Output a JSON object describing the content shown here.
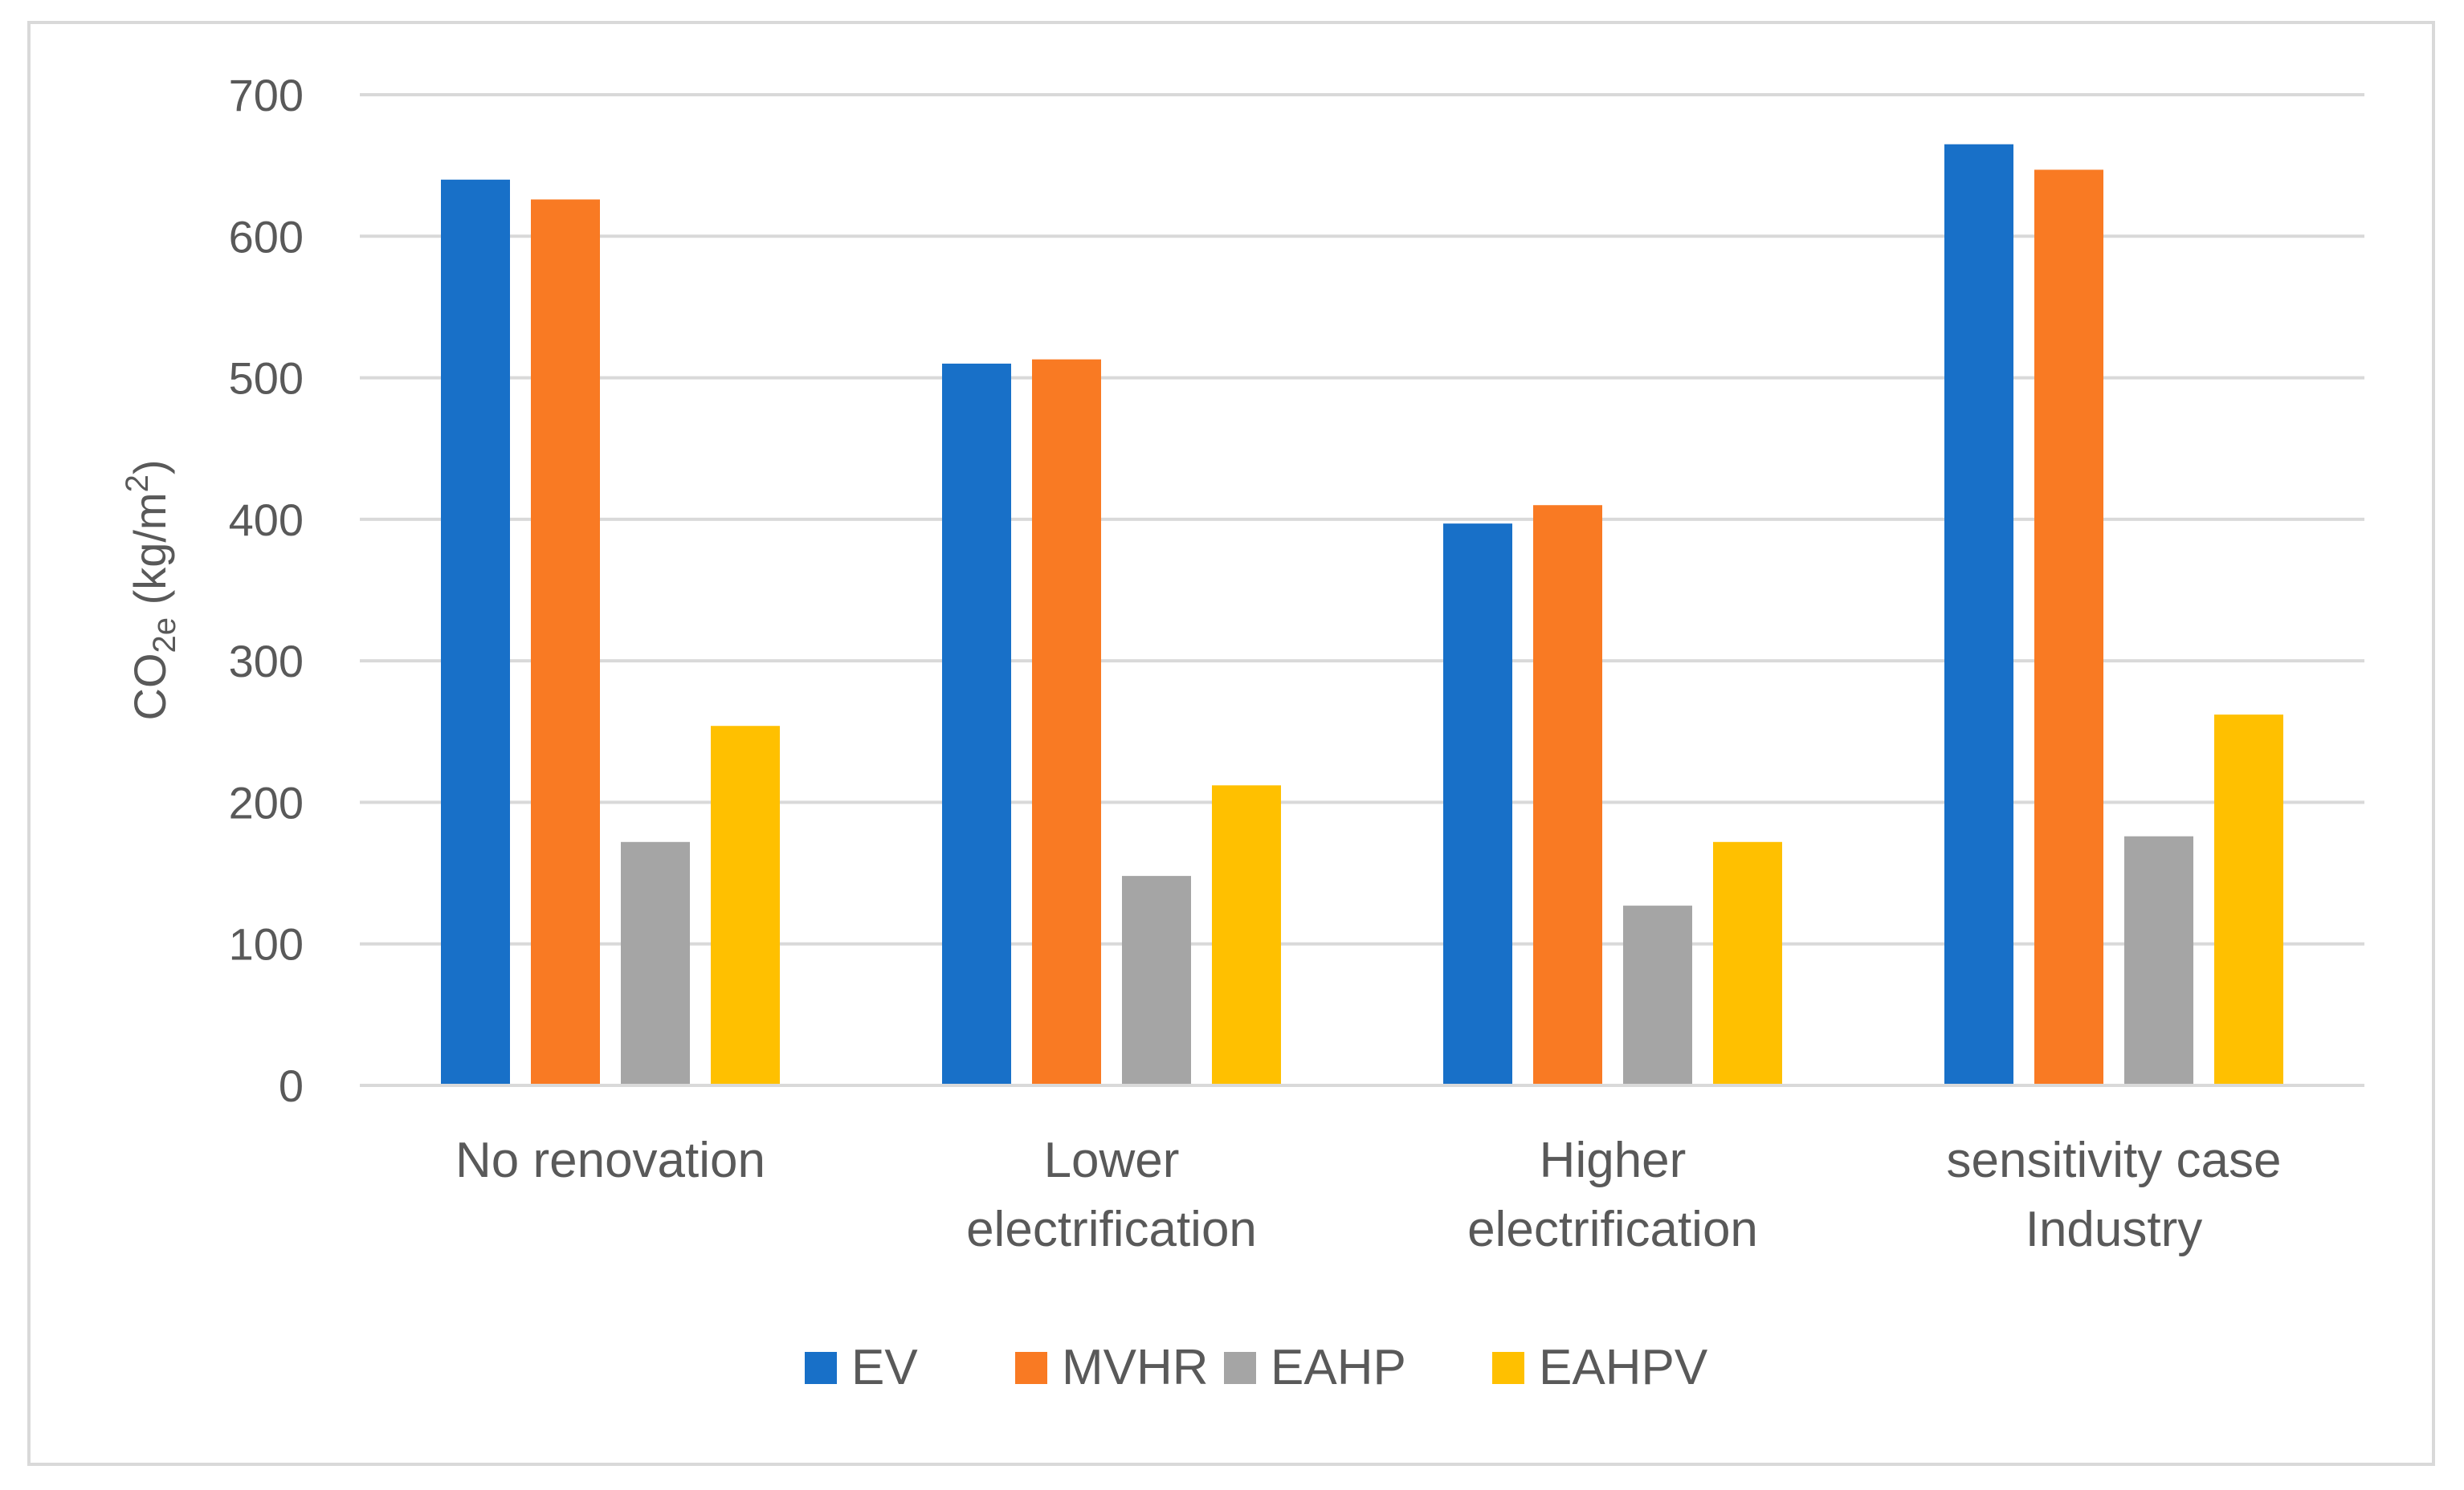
{
  "chart_data": {
    "type": "bar",
    "title": "",
    "xlabel": "",
    "ylabel": {
      "base": "CO",
      "subscript": "2e",
      "unit_prefix": " (kg/m",
      "superscript": "2",
      "unit_suffix": ")"
    },
    "categories": [
      [
        "No renovation"
      ],
      [
        "Lower",
        "electrification"
      ],
      [
        "Higher",
        "electrification"
      ],
      [
        "sensitivity case",
        "Industry"
      ]
    ],
    "series": [
      {
        "name": "EV",
        "color": "#1870c8",
        "values": [
          640,
          510,
          397,
          665
        ]
      },
      {
        "name": "MVHR",
        "color": "#f97a23",
        "values": [
          626,
          513,
          410,
          647
        ]
      },
      {
        "name": "EAHP",
        "color": "#a5a5a5",
        "values": [
          172,
          148,
          127,
          176
        ]
      },
      {
        "name": "EAHPV",
        "color": "#ffc000",
        "values": [
          254,
          212,
          172,
          262
        ]
      }
    ],
    "ylim": [
      0,
      700
    ],
    "yticks": [
      0,
      100,
      200,
      300,
      400,
      500,
      600,
      700
    ],
    "grid": true,
    "legend_position": "bottom"
  }
}
